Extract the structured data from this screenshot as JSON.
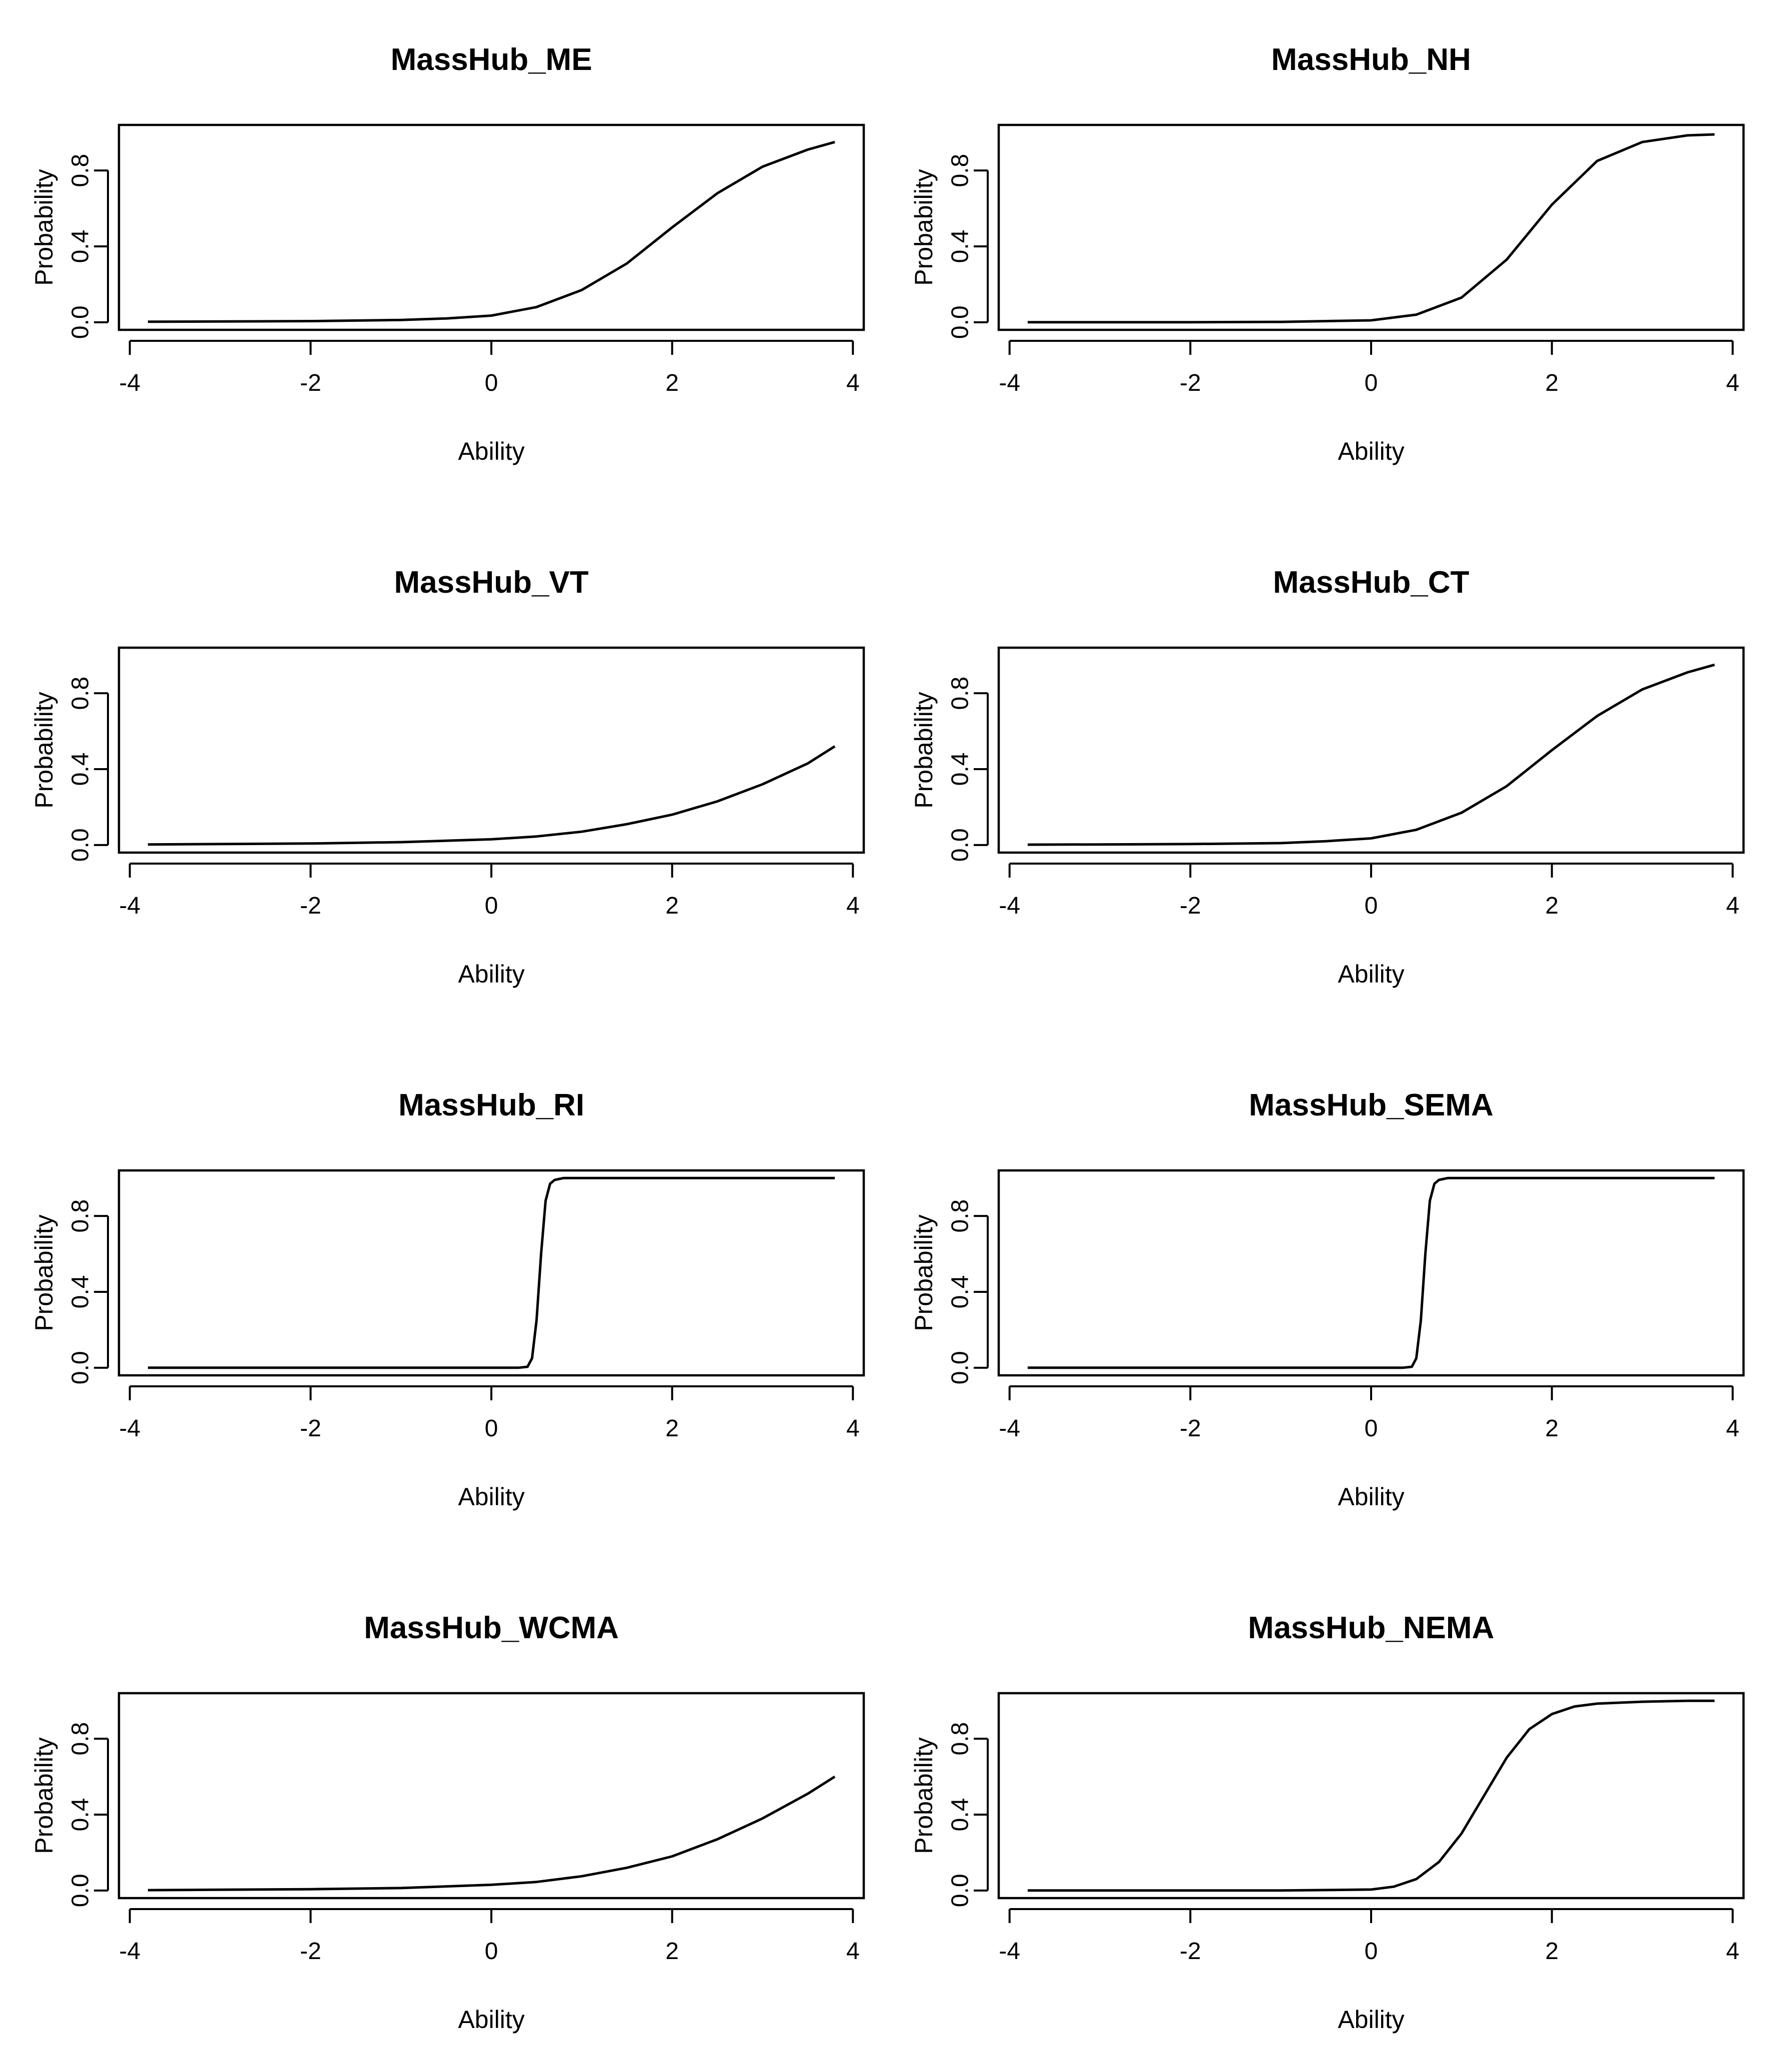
{
  "chart_data": [
    {
      "type": "line",
      "title": "MassHub_ME",
      "xlabel": "Ability",
      "ylabel": "Probability",
      "xlim": [
        -4,
        4
      ],
      "ylim": [
        0,
        1
      ],
      "x_ticks": [
        "-4",
        "-2",
        "0",
        "2",
        "4"
      ],
      "y_ticks": [
        "0.0",
        "0.4",
        "0.8"
      ],
      "x": [
        -3.8,
        -3,
        -2,
        -1,
        -0.5,
        0,
        0.5,
        1,
        1.5,
        2,
        2.5,
        3,
        3.5,
        3.8
      ],
      "y": [
        0.003,
        0.004,
        0.006,
        0.012,
        0.02,
        0.035,
        0.08,
        0.17,
        0.31,
        0.5,
        0.68,
        0.82,
        0.91,
        0.95
      ]
    },
    {
      "type": "line",
      "title": "MassHub_NH",
      "xlabel": "Ability",
      "ylabel": "Probability",
      "xlim": [
        -4,
        4
      ],
      "ylim": [
        0,
        1
      ],
      "x_ticks": [
        "-4",
        "-2",
        "0",
        "2",
        "4"
      ],
      "y_ticks": [
        "0.0",
        "0.4",
        "0.8"
      ],
      "x": [
        -3.8,
        -2,
        -1,
        0,
        0.5,
        1,
        1.5,
        2,
        2.5,
        3,
        3.5,
        3.8
      ],
      "y": [
        0.0,
        0.0,
        0.002,
        0.01,
        0.04,
        0.13,
        0.33,
        0.62,
        0.85,
        0.95,
        0.985,
        0.99
      ]
    },
    {
      "type": "line",
      "title": "MassHub_VT",
      "xlabel": "Ability",
      "ylabel": "Probability",
      "xlim": [
        -4,
        4
      ],
      "ylim": [
        0,
        1
      ],
      "x_ticks": [
        "-4",
        "-2",
        "0",
        "2",
        "4"
      ],
      "y_ticks": [
        "0.0",
        "0.4",
        "0.8"
      ],
      "x": [
        -3.8,
        -3,
        -2,
        -1,
        0,
        0.5,
        1,
        1.5,
        2,
        2.5,
        3,
        3.5,
        3.8
      ],
      "y": [
        0.003,
        0.005,
        0.008,
        0.015,
        0.03,
        0.045,
        0.07,
        0.11,
        0.16,
        0.23,
        0.32,
        0.43,
        0.52
      ]
    },
    {
      "type": "line",
      "title": "MassHub_CT",
      "xlabel": "Ability",
      "ylabel": "Probability",
      "xlim": [
        -4,
        4
      ],
      "ylim": [
        0,
        1
      ],
      "x_ticks": [
        "-4",
        "-2",
        "0",
        "2",
        "4"
      ],
      "y_ticks": [
        "0.0",
        "0.4",
        "0.8"
      ],
      "x": [
        -3.8,
        -3,
        -2,
        -1,
        -0.5,
        0,
        0.5,
        1,
        1.5,
        2,
        2.5,
        3,
        3.5,
        3.8
      ],
      "y": [
        0.002,
        0.003,
        0.005,
        0.01,
        0.02,
        0.035,
        0.08,
        0.17,
        0.31,
        0.5,
        0.68,
        0.82,
        0.91,
        0.95
      ]
    },
    {
      "type": "line",
      "title": "MassHub_RI",
      "xlabel": "Ability",
      "ylabel": "Probability",
      "xlim": [
        -4,
        4
      ],
      "ylim": [
        0,
        1
      ],
      "x_ticks": [
        "-4",
        "-2",
        "0",
        "2",
        "4"
      ],
      "y_ticks": [
        "0.0",
        "0.4",
        "0.8"
      ],
      "x": [
        -3.8,
        0.3,
        0.4,
        0.45,
        0.5,
        0.55,
        0.6,
        0.65,
        0.7,
        0.8,
        3.8
      ],
      "y": [
        0.0,
        0.0,
        0.005,
        0.05,
        0.25,
        0.6,
        0.88,
        0.97,
        0.99,
        1.0,
        1.0
      ]
    },
    {
      "type": "line",
      "title": "MassHub_SEMA",
      "xlabel": "Ability",
      "ylabel": "Probability",
      "xlim": [
        -4,
        4
      ],
      "ylim": [
        0,
        1
      ],
      "x_ticks": [
        "-4",
        "-2",
        "0",
        "2",
        "4"
      ],
      "y_ticks": [
        "0.0",
        "0.4",
        "0.8"
      ],
      "x": [
        -3.8,
        0.35,
        0.45,
        0.5,
        0.55,
        0.6,
        0.65,
        0.7,
        0.75,
        0.85,
        3.8
      ],
      "y": [
        0.0,
        0.0,
        0.005,
        0.05,
        0.25,
        0.6,
        0.88,
        0.97,
        0.99,
        1.0,
        1.0
      ]
    },
    {
      "type": "line",
      "title": "MassHub_WCMA",
      "xlabel": "Ability",
      "ylabel": "Probability",
      "xlim": [
        -4,
        4
      ],
      "ylim": [
        0,
        1
      ],
      "x_ticks": [
        "-4",
        "-2",
        "0",
        "2",
        "4"
      ],
      "y_ticks": [
        "0.0",
        "0.4",
        "0.8"
      ],
      "x": [
        -3.8,
        -3,
        -2,
        -1,
        0,
        0.5,
        1,
        1.5,
        2,
        2.5,
        3,
        3.5,
        3.8
      ],
      "y": [
        0.002,
        0.004,
        0.007,
        0.013,
        0.03,
        0.045,
        0.075,
        0.12,
        0.18,
        0.27,
        0.38,
        0.51,
        0.6
      ]
    },
    {
      "type": "line",
      "title": "MassHub_NEMA",
      "xlabel": "Ability",
      "ylabel": "Probability",
      "xlim": [
        -4,
        4
      ],
      "ylim": [
        0,
        1
      ],
      "x_ticks": [
        "-4",
        "-2",
        "0",
        "2",
        "4"
      ],
      "y_ticks": [
        "0.0",
        "0.4",
        "0.8"
      ],
      "x": [
        -3.8,
        -2,
        -1,
        0,
        0.25,
        0.5,
        0.75,
        1,
        1.25,
        1.5,
        1.75,
        2,
        2.25,
        2.5,
        3,
        3.5,
        3.8
      ],
      "y": [
        0.0,
        0.0,
        0.0,
        0.005,
        0.02,
        0.06,
        0.15,
        0.3,
        0.5,
        0.7,
        0.85,
        0.93,
        0.97,
        0.985,
        0.995,
        1.0,
        1.0
      ]
    }
  ]
}
